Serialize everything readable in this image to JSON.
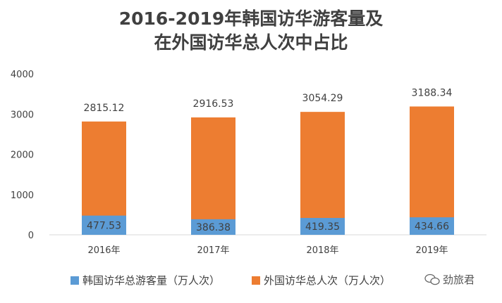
{
  "title": {
    "line1": "2016-2019年韩国访华游客量及",
    "line2": "在外国访华总人次中占比"
  },
  "chart_data": {
    "type": "bar",
    "stacked": true,
    "categories": [
      "2016年",
      "2017年",
      "2018年",
      "2019年"
    ],
    "series": [
      {
        "name": "韩国访华总游客量（万人次）",
        "values": [
          477.53,
          386.38,
          419.35,
          434.66
        ],
        "color": "#5B9BD5"
      },
      {
        "name": "外国访华总人次（万人次）",
        "values": [
          2815.12,
          2916.53,
          3054.29,
          3188.34
        ],
        "color": "#ED7D31"
      }
    ],
    "ylim": [
      0,
      4000
    ],
    "yticks": [
      0,
      1000,
      2000,
      3000,
      4000
    ],
    "labels": {
      "bottom": [
        "477.53",
        "386.38",
        "419.35",
        "434.66"
      ],
      "top": [
        "2815.12",
        "2916.53",
        "3054.29",
        "3188.34"
      ]
    },
    "grid": false,
    "legend_position": "bottom"
  },
  "watermark": {
    "text": "劲旅君",
    "icon": "wechat-icon"
  }
}
